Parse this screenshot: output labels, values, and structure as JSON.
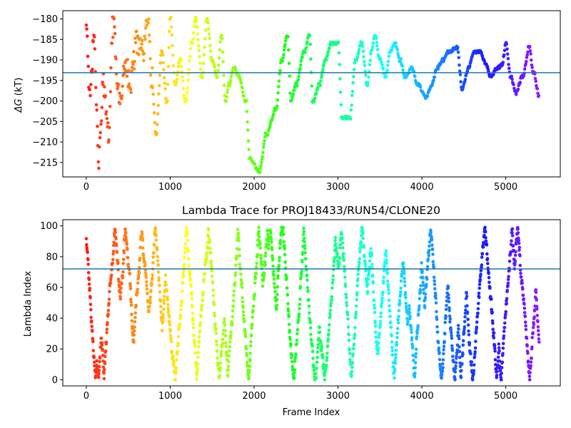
{
  "chart_data": [
    {
      "type": "scatter",
      "title": "",
      "xlabel": "",
      "ylabel": "ΔG (kT)",
      "ylabel_symbol": "ΔG",
      "ylabel_unit": " (kT)",
      "xlim": [
        -280,
        5650
      ],
      "ylim": [
        -218.5,
        -178.0
      ],
      "xticks": [
        0,
        1000,
        2000,
        3000,
        4000,
        5000
      ],
      "yticks": [
        -215,
        -210,
        -205,
        -200,
        -195,
        -190,
        -185,
        -180
      ],
      "xtick_labels": [
        "0",
        "1000",
        "2000",
        "3000",
        "4000",
        "5000"
      ],
      "ytick_labels": [
        "−215",
        "−210",
        "−205",
        "−200",
        "−195",
        "−190",
        "−185",
        "−180"
      ],
      "hline": -193.1,
      "hline_color": "#1f77b4",
      "colormap": "rainbow_r",
      "n_frames": 5400,
      "segments": [
        [
          0,
          -180
        ],
        [
          40,
          -200
        ],
        [
          90,
          -186
        ],
        [
          150,
          -214
        ],
        [
          200,
          -196
        ],
        [
          260,
          -208
        ],
        [
          320,
          -182
        ],
        [
          400,
          -200
        ],
        [
          470,
          -190
        ],
        [
          520,
          -196
        ],
        [
          600,
          -186
        ],
        [
          680,
          -188
        ],
        [
          740,
          -180
        ],
        [
          780,
          -194
        ],
        [
          830,
          -208
        ],
        [
          900,
          -188
        ],
        [
          960,
          -200
        ],
        [
          1000,
          -180
        ],
        [
          1060,
          -196
        ],
        [
          1120,
          -190
        ],
        [
          1180,
          -200
        ],
        [
          1260,
          -186
        ],
        [
          1300,
          -180
        ],
        [
          1380,
          -194
        ],
        [
          1440,
          -180
        ],
        [
          1500,
          -190
        ],
        [
          1560,
          -194
        ],
        [
          1610,
          -184
        ],
        [
          1660,
          -200
        ],
        [
          1700,
          -196
        ],
        [
          1760,
          -192
        ],
        [
          1820,
          -194
        ],
        [
          1900,
          -200
        ],
        [
          1950,
          -214
        ],
        [
          2060,
          -217
        ],
        [
          2150,
          -208
        ],
        [
          2260,
          -202
        ],
        [
          2330,
          -190
        ],
        [
          2400,
          -184
        ],
        [
          2440,
          -200
        ],
        [
          2500,
          -196
        ],
        [
          2600,
          -188
        ],
        [
          2660,
          -184
        ],
        [
          2700,
          -200
        ],
        [
          2780,
          -196
        ],
        [
          2850,
          -190
        ],
        [
          2920,
          -186
        ],
        [
          3000,
          -186
        ],
        [
          3050,
          -204
        ],
        [
          3140,
          -204
        ],
        [
          3210,
          -190
        ],
        [
          3280,
          -186
        ],
        [
          3350,
          -196
        ],
        [
          3400,
          -188
        ],
        [
          3440,
          -184
        ],
        [
          3500,
          -190
        ],
        [
          3570,
          -194
        ],
        [
          3620,
          -188
        ],
        [
          3680,
          -186
        ],
        [
          3740,
          -190
        ],
        [
          3800,
          -194
        ],
        [
          3880,
          -192
        ],
        [
          3950,
          -196
        ],
        [
          4050,
          -199
        ],
        [
          4120,
          -196
        ],
        [
          4180,
          -192
        ],
        [
          4250,
          -190
        ],
        [
          4320,
          -188
        ],
        [
          4420,
          -187
        ],
        [
          4480,
          -197
        ],
        [
          4560,
          -192
        ],
        [
          4620,
          -188
        ],
        [
          4700,
          -188
        ],
        [
          4760,
          -191
        ],
        [
          4820,
          -194
        ],
        [
          4900,
          -192
        ],
        [
          4960,
          -191
        ],
        [
          5000,
          -186
        ],
        [
          5060,
          -194
        ],
        [
          5120,
          -198
        ],
        [
          5200,
          -194
        ],
        [
          5280,
          -187
        ],
        [
          5330,
          -193
        ],
        [
          5400,
          -199
        ]
      ]
    },
    {
      "type": "scatter",
      "title": "Lambda Trace for PROJ18433/RUN54/CLONE20",
      "xlabel": "Frame Index",
      "ylabel": "Lambda Index",
      "xlim": [
        -280,
        5650
      ],
      "ylim": [
        -4,
        104
      ],
      "xticks": [
        0,
        1000,
        2000,
        3000,
        4000,
        5000
      ],
      "yticks": [
        0,
        20,
        40,
        60,
        80,
        100
      ],
      "xtick_labels": [
        "0",
        "1000",
        "2000",
        "3000",
        "4000",
        "5000"
      ],
      "ytick_labels": [
        "0",
        "20",
        "40",
        "60",
        "80",
        "100"
      ],
      "hline": 72,
      "hline_color": "#1f77b4",
      "colormap": "rainbow_r",
      "n_frames": 5400,
      "trace": "random walk on 0–100 with vertical-stripe clustering"
    }
  ]
}
